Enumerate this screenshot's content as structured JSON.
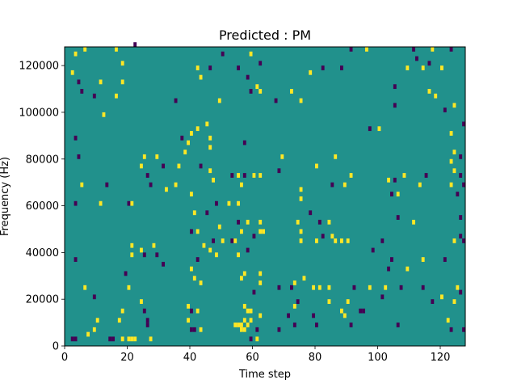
{
  "chart_data": {
    "type": "heatmap",
    "title": "Predicted : PM",
    "xlabel": "Time step",
    "ylabel": "Frequency (Hz)",
    "xlim": [
      0,
      128
    ],
    "ylim": [
      0,
      128000
    ],
    "x_ticks": [
      0,
      20,
      40,
      60,
      80,
      100,
      120
    ],
    "y_ticks": [
      0,
      20000,
      40000,
      60000,
      80000,
      100000,
      120000
    ],
    "x_tick_labels": [
      "0",
      "20",
      "40",
      "60",
      "80",
      "100",
      "120"
    ],
    "y_tick_labels": [
      "0",
      "20000",
      "40000",
      "60000",
      "80000",
      "100000",
      "120000"
    ],
    "grid": false,
    "legend": "none",
    "colormap": "viridis",
    "background_value": 0,
    "value_colors": {
      "-1": "#440154",
      "0": "#21918c",
      "1": "#fde725"
    },
    "frequency_bin_hz": 2000,
    "cells": [
      {
        "t": 3,
        "f": 124000,
        "v": 1
      },
      {
        "t": 6,
        "f": 126000,
        "v": 1
      },
      {
        "t": 2,
        "f": 116000,
        "v": 1
      },
      {
        "t": 4,
        "f": 112000,
        "v": -1
      },
      {
        "t": 5,
        "f": 108000,
        "v": -1
      },
      {
        "t": 3,
        "f": 88000,
        "v": -1
      },
      {
        "t": 4,
        "f": 80000,
        "v": -1
      },
      {
        "t": 5,
        "f": 68000,
        "v": 1
      },
      {
        "t": 3,
        "f": 60000,
        "v": -1
      },
      {
        "t": 3,
        "f": 36000,
        "v": -1
      },
      {
        "t": 6,
        "f": 24000,
        "v": 1
      },
      {
        "t": 9,
        "f": 20000,
        "v": -1
      },
      {
        "t": 10,
        "f": 10000,
        "v": 1
      },
      {
        "t": 9,
        "f": 6000,
        "v": 1
      },
      {
        "t": 7,
        "f": 4000,
        "v": 1
      },
      {
        "t": 2,
        "f": 2000,
        "v": -1
      },
      {
        "t": 3,
        "f": 2000,
        "v": -1
      },
      {
        "t": 14,
        "f": 2000,
        "v": -1
      },
      {
        "t": 15,
        "f": 2000,
        "v": -1
      },
      {
        "t": 18,
        "f": 2000,
        "v": 1
      },
      {
        "t": 20,
        "f": 2000,
        "v": 1
      },
      {
        "t": 21,
        "f": 2000,
        "v": 1
      },
      {
        "t": 22,
        "f": 2000,
        "v": 1
      },
      {
        "t": 27,
        "f": 2000,
        "v": 1
      },
      {
        "t": 11,
        "f": 112000,
        "v": 1
      },
      {
        "t": 9,
        "f": 106000,
        "v": -1
      },
      {
        "t": 12,
        "f": 98000,
        "v": 1
      },
      {
        "t": 16,
        "f": 126000,
        "v": 1
      },
      {
        "t": 18,
        "f": 120000,
        "v": 1
      },
      {
        "t": 18,
        "f": 112000,
        "v": 1
      },
      {
        "t": 16,
        "f": 106000,
        "v": 1
      },
      {
        "t": 13,
        "f": 68000,
        "v": -1
      },
      {
        "t": 11,
        "f": 60000,
        "v": 1
      },
      {
        "t": 20,
        "f": 60000,
        "v": -1
      },
      {
        "t": 21,
        "f": 60000,
        "v": 1
      },
      {
        "t": 24,
        "f": 76000,
        "v": 1
      },
      {
        "t": 25,
        "f": 80000,
        "v": 1
      },
      {
        "t": 26,
        "f": 72000,
        "v": -1
      },
      {
        "t": 27,
        "f": 68000,
        "v": -1
      },
      {
        "t": 22,
        "f": 128000,
        "v": -1
      },
      {
        "t": 21,
        "f": 42000,
        "v": 1
      },
      {
        "t": 21,
        "f": 38000,
        "v": 1
      },
      {
        "t": 24,
        "f": 40000,
        "v": 1
      },
      {
        "t": 25,
        "f": 38000,
        "v": -1
      },
      {
        "t": 28,
        "f": 42000,
        "v": 1
      },
      {
        "t": 29,
        "f": 38000,
        "v": -1
      },
      {
        "t": 31,
        "f": 34000,
        "v": -1
      },
      {
        "t": 19,
        "f": 30000,
        "v": -1
      },
      {
        "t": 20,
        "f": 24000,
        "v": 1
      },
      {
        "t": 24,
        "f": 18000,
        "v": 1
      },
      {
        "t": 25,
        "f": 14000,
        "v": -1
      },
      {
        "t": 26,
        "f": 10000,
        "v": -1
      },
      {
        "t": 26,
        "f": 8000,
        "v": -1
      },
      {
        "t": 18,
        "f": 14000,
        "v": 1
      },
      {
        "t": 17,
        "f": 10000,
        "v": 1
      },
      {
        "t": 29,
        "f": 80000,
        "v": 1
      },
      {
        "t": 31,
        "f": 76000,
        "v": -1
      },
      {
        "t": 32,
        "f": 66000,
        "v": 1
      },
      {
        "t": 36,
        "f": 76000,
        "v": 1
      },
      {
        "t": 35,
        "f": 68000,
        "v": 1
      },
      {
        "t": 38,
        "f": 82000,
        "v": 1
      },
      {
        "t": 37,
        "f": 88000,
        "v": -1
      },
      {
        "t": 40,
        "f": 90000,
        "v": 1
      },
      {
        "t": 39,
        "f": 86000,
        "v": 1
      },
      {
        "t": 42,
        "f": 92000,
        "v": 1
      },
      {
        "t": 45,
        "f": 94000,
        "v": 1
      },
      {
        "t": 46,
        "f": 88000,
        "v": 1
      },
      {
        "t": 46,
        "f": 84000,
        "v": 1
      },
      {
        "t": 43,
        "f": 76000,
        "v": -1
      },
      {
        "t": 46,
        "f": 74000,
        "v": 1
      },
      {
        "t": 47,
        "f": 70000,
        "v": 1
      },
      {
        "t": 40,
        "f": 64000,
        "v": 1
      },
      {
        "t": 41,
        "f": 56000,
        "v": 1
      },
      {
        "t": 45,
        "f": 56000,
        "v": -1
      },
      {
        "t": 48,
        "f": 60000,
        "v": -1
      },
      {
        "t": 42,
        "f": 118000,
        "v": 1
      },
      {
        "t": 43,
        "f": 114000,
        "v": 1
      },
      {
        "t": 46,
        "f": 118000,
        "v": -1
      },
      {
        "t": 49,
        "f": 104000,
        "v": 1
      },
      {
        "t": 35,
        "f": 104000,
        "v": -1
      },
      {
        "t": 40,
        "f": 48000,
        "v": -1
      },
      {
        "t": 42,
        "f": 48000,
        "v": 1
      },
      {
        "t": 44,
        "f": 42000,
        "v": 1
      },
      {
        "t": 46,
        "f": 40000,
        "v": 1
      },
      {
        "t": 47,
        "f": 44000,
        "v": -1
      },
      {
        "t": 49,
        "f": 50000,
        "v": 1
      },
      {
        "t": 50,
        "f": 44000,
        "v": 1
      },
      {
        "t": 48,
        "f": 38000,
        "v": 1
      },
      {
        "t": 42,
        "f": 36000,
        "v": -1
      },
      {
        "t": 40,
        "f": 32000,
        "v": 1
      },
      {
        "t": 41,
        "f": 28000,
        "v": 1
      },
      {
        "t": 43,
        "f": 26000,
        "v": 1
      },
      {
        "t": 39,
        "f": 16000,
        "v": 1
      },
      {
        "t": 40,
        "f": 14000,
        "v": -1
      },
      {
        "t": 39,
        "f": 10000,
        "v": 1
      },
      {
        "t": 42,
        "f": 14000,
        "v": 1
      },
      {
        "t": 40,
        "f": 6000,
        "v": -1
      },
      {
        "t": 41,
        "f": 6000,
        "v": -1
      },
      {
        "t": 43,
        "f": 6000,
        "v": 1
      },
      {
        "t": 50,
        "f": 124000,
        "v": -1
      },
      {
        "t": 55,
        "f": 118000,
        "v": -1
      },
      {
        "t": 59,
        "f": 124000,
        "v": 1
      },
      {
        "t": 62,
        "f": 120000,
        "v": -1
      },
      {
        "t": 58,
        "f": 114000,
        "v": -1
      },
      {
        "t": 59,
        "f": 108000,
        "v": -1
      },
      {
        "t": 61,
        "f": 110000,
        "v": 1
      },
      {
        "t": 62,
        "f": 108000,
        "v": 1
      },
      {
        "t": 57,
        "f": 86000,
        "v": -1
      },
      {
        "t": 53,
        "f": 72000,
        "v": -1
      },
      {
        "t": 55,
        "f": 72000,
        "v": 1
      },
      {
        "t": 57,
        "f": 72000,
        "v": -1
      },
      {
        "t": 60,
        "f": 72000,
        "v": 1
      },
      {
        "t": 62,
        "f": 72000,
        "v": 1
      },
      {
        "t": 56,
        "f": 68000,
        "v": 1
      },
      {
        "t": 52,
        "f": 60000,
        "v": 1
      },
      {
        "t": 55,
        "f": 60000,
        "v": 1
      },
      {
        "t": 58,
        "f": 52000,
        "v": 1
      },
      {
        "t": 55,
        "f": 52000,
        "v": -1
      },
      {
        "t": 56,
        "f": 48000,
        "v": 1
      },
      {
        "t": 60,
        "f": 46000,
        "v": -1
      },
      {
        "t": 62,
        "f": 52000,
        "v": 1
      },
      {
        "t": 62,
        "f": 48000,
        "v": 1
      },
      {
        "t": 63,
        "f": 48000,
        "v": 1
      },
      {
        "t": 53,
        "f": 44000,
        "v": -1
      },
      {
        "t": 54,
        "f": 44000,
        "v": 1
      },
      {
        "t": 58,
        "f": 40000,
        "v": -1
      },
      {
        "t": 55,
        "f": 38000,
        "v": 1
      },
      {
        "t": 57,
        "f": 30000,
        "v": 1
      },
      {
        "t": 56,
        "f": 28000,
        "v": 1
      },
      {
        "t": 62,
        "f": 30000,
        "v": 1
      },
      {
        "t": 62,
        "f": 26000,
        "v": 1
      },
      {
        "t": 60,
        "f": 22000,
        "v": -1
      },
      {
        "t": 57,
        "f": 16000,
        "v": 1
      },
      {
        "t": 58,
        "f": 14000,
        "v": 1
      },
      {
        "t": 59,
        "f": 14000,
        "v": 1
      },
      {
        "t": 57,
        "f": 10000,
        "v": 1
      },
      {
        "t": 59,
        "f": 10000,
        "v": 1
      },
      {
        "t": 54,
        "f": 8000,
        "v": 1
      },
      {
        "t": 55,
        "f": 8000,
        "v": 1
      },
      {
        "t": 56,
        "f": 8000,
        "v": 1
      },
      {
        "t": 58,
        "f": 8000,
        "v": 1
      },
      {
        "t": 56,
        "f": 6000,
        "v": 1
      },
      {
        "t": 57,
        "f": 6000,
        "v": 1
      },
      {
        "t": 62,
        "f": 12000,
        "v": 1
      },
      {
        "t": 61,
        "f": 6000,
        "v": -1
      },
      {
        "t": 61,
        "f": 2000,
        "v": 1
      },
      {
        "t": 59,
        "f": 2000,
        "v": -1
      },
      {
        "t": 67,
        "f": 104000,
        "v": -1
      },
      {
        "t": 72,
        "f": 108000,
        "v": 1
      },
      {
        "t": 75,
        "f": 104000,
        "v": 1
      },
      {
        "t": 78,
        "f": 116000,
        "v": 1
      },
      {
        "t": 82,
        "f": 118000,
        "v": -1
      },
      {
        "t": 69,
        "f": 80000,
        "v": 1
      },
      {
        "t": 68,
        "f": 74000,
        "v": -1
      },
      {
        "t": 75,
        "f": 66000,
        "v": 1
      },
      {
        "t": 75,
        "f": 62000,
        "v": 1
      },
      {
        "t": 74,
        "f": 52000,
        "v": 1
      },
      {
        "t": 75,
        "f": 48000,
        "v": 1
      },
      {
        "t": 78,
        "f": 56000,
        "v": -1
      },
      {
        "t": 81,
        "f": 52000,
        "v": -1
      },
      {
        "t": 84,
        "f": 52000,
        "v": 1
      },
      {
        "t": 82,
        "f": 46000,
        "v": -1
      },
      {
        "t": 85,
        "f": 46000,
        "v": 1
      },
      {
        "t": 86,
        "f": 44000,
        "v": 1
      },
      {
        "t": 88,
        "f": 44000,
        "v": 1
      },
      {
        "t": 90,
        "f": 44000,
        "v": 1
      },
      {
        "t": 80,
        "f": 44000,
        "v": 1
      },
      {
        "t": 75,
        "f": 44000,
        "v": 1
      },
      {
        "t": 80,
        "f": 76000,
        "v": 1
      },
      {
        "t": 85,
        "f": 68000,
        "v": -1
      },
      {
        "t": 89,
        "f": 68000,
        "v": 1
      },
      {
        "t": 91,
        "f": 72000,
        "v": 1
      },
      {
        "t": 86,
        "f": 80000,
        "v": 1
      },
      {
        "t": 88,
        "f": 118000,
        "v": -1
      },
      {
        "t": 91,
        "f": 126000,
        "v": -1
      },
      {
        "t": 96,
        "f": 126000,
        "v": 1
      },
      {
        "t": 97,
        "f": 92000,
        "v": -1
      },
      {
        "t": 100,
        "f": 92000,
        "v": 1
      },
      {
        "t": 72,
        "f": 24000,
        "v": -1
      },
      {
        "t": 73,
        "f": 26000,
        "v": 1
      },
      {
        "t": 76,
        "f": 28000,
        "v": 1
      },
      {
        "t": 79,
        "f": 24000,
        "v": 1
      },
      {
        "t": 81,
        "f": 24000,
        "v": 1
      },
      {
        "t": 84,
        "f": 24000,
        "v": 1
      },
      {
        "t": 68,
        "f": 24000,
        "v": -1
      },
      {
        "t": 71,
        "f": 12000,
        "v": -1
      },
      {
        "t": 73,
        "f": 16000,
        "v": 1
      },
      {
        "t": 74,
        "f": 18000,
        "v": -1
      },
      {
        "t": 73,
        "f": 8000,
        "v": -1
      },
      {
        "t": 79,
        "f": 12000,
        "v": -1
      },
      {
        "t": 80,
        "f": 8000,
        "v": -1
      },
      {
        "t": 68,
        "f": 6000,
        "v": -1
      },
      {
        "t": 84,
        "f": 18000,
        "v": 1
      },
      {
        "t": 88,
        "f": 14000,
        "v": 1
      },
      {
        "t": 90,
        "f": 18000,
        "v": 1
      },
      {
        "t": 89,
        "f": 12000,
        "v": 1
      },
      {
        "t": 91,
        "f": 8000,
        "v": -1
      },
      {
        "t": 94,
        "f": 14000,
        "v": -1
      },
      {
        "t": 95,
        "f": 14000,
        "v": -1
      },
      {
        "t": 103,
        "f": 32000,
        "v": -1
      },
      {
        "t": 103,
        "f": 70000,
        "v": 1
      },
      {
        "t": 104,
        "f": 64000,
        "v": -1
      },
      {
        "t": 105,
        "f": 70000,
        "v": -1
      },
      {
        "t": 106,
        "f": 64000,
        "v": 1
      },
      {
        "t": 108,
        "f": 72000,
        "v": 1
      },
      {
        "t": 106,
        "f": 54000,
        "v": -1
      },
      {
        "t": 101,
        "f": 44000,
        "v": -1
      },
      {
        "t": 104,
        "f": 36000,
        "v": -1
      },
      {
        "t": 102,
        "f": 24000,
        "v": 1
      },
      {
        "t": 107,
        "f": 24000,
        "v": -1
      },
      {
        "t": 109,
        "f": 32000,
        "v": 1
      },
      {
        "t": 111,
        "f": 52000,
        "v": 1
      },
      {
        "t": 97,
        "f": 24000,
        "v": 1
      },
      {
        "t": 92,
        "f": 24000,
        "v": -1
      },
      {
        "t": 101,
        "f": 20000,
        "v": -1
      },
      {
        "t": 106,
        "f": 8000,
        "v": -1
      },
      {
        "t": 98,
        "f": 40000,
        "v": -1
      },
      {
        "t": 105,
        "f": 110000,
        "v": -1
      },
      {
        "t": 105,
        "f": 102000,
        "v": -1
      },
      {
        "t": 109,
        "f": 118000,
        "v": 1
      },
      {
        "t": 111,
        "f": 126000,
        "v": -1
      },
      {
        "t": 112,
        "f": 122000,
        "v": -1
      },
      {
        "t": 114,
        "f": 118000,
        "v": 1
      },
      {
        "t": 116,
        "f": 120000,
        "v": -1
      },
      {
        "t": 117,
        "f": 126000,
        "v": 1
      },
      {
        "t": 120,
        "f": 118000,
        "v": 1
      },
      {
        "t": 116,
        "f": 108000,
        "v": 1
      },
      {
        "t": 118,
        "f": 106000,
        "v": 1
      },
      {
        "t": 121,
        "f": 100000,
        "v": -1
      },
      {
        "t": 124,
        "f": 102000,
        "v": 1
      },
      {
        "t": 123,
        "f": 126000,
        "v": -1
      },
      {
        "t": 127,
        "f": 94000,
        "v": -1
      },
      {
        "t": 123,
        "f": 90000,
        "v": 1
      },
      {
        "t": 124,
        "f": 82000,
        "v": 1
      },
      {
        "t": 123,
        "f": 78000,
        "v": 1
      },
      {
        "t": 124,
        "f": 74000,
        "v": 1
      },
      {
        "t": 126,
        "f": 80000,
        "v": -1
      },
      {
        "t": 126,
        "f": 72000,
        "v": -1
      },
      {
        "t": 127,
        "f": 68000,
        "v": -1
      },
      {
        "t": 123,
        "f": 68000,
        "v": 1
      },
      {
        "t": 125,
        "f": 64000,
        "v": -1
      },
      {
        "t": 126,
        "f": 54000,
        "v": -1
      },
      {
        "t": 126,
        "f": 46000,
        "v": -1
      },
      {
        "t": 127,
        "f": 44000,
        "v": -1
      },
      {
        "t": 124,
        "f": 44000,
        "v": 1
      },
      {
        "t": 121,
        "f": 36000,
        "v": -1
      },
      {
        "t": 114,
        "f": 36000,
        "v": 1
      },
      {
        "t": 114,
        "f": 24000,
        "v": -1
      },
      {
        "t": 120,
        "f": 20000,
        "v": 1
      },
      {
        "t": 124,
        "f": 18000,
        "v": 1
      },
      {
        "t": 125,
        "f": 24000,
        "v": 1
      },
      {
        "t": 126,
        "f": 22000,
        "v": -1
      },
      {
        "t": 117,
        "f": 18000,
        "v": -1
      },
      {
        "t": 122,
        "f": 10000,
        "v": 1
      },
      {
        "t": 123,
        "f": 6000,
        "v": -1
      },
      {
        "t": 127,
        "f": 6000,
        "v": -1
      },
      {
        "t": 113,
        "f": 68000,
        "v": 1
      },
      {
        "t": 115,
        "f": 72000,
        "v": -1
      }
    ]
  }
}
